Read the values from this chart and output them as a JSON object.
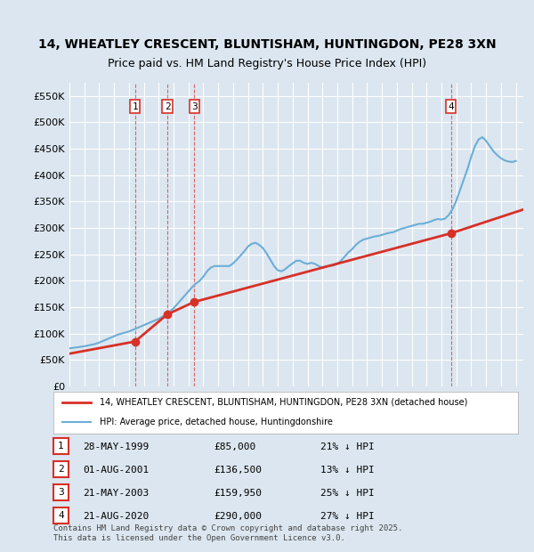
{
  "title": "14, WHEATLEY CRESCENT, BLUNTISHAM, HUNTINGDON, PE28 3XN",
  "subtitle": "Price paid vs. HM Land Registry's House Price Index (HPI)",
  "xlabel": "",
  "ylabel": "",
  "ylim": [
    0,
    575000
  ],
  "yticks": [
    0,
    50000,
    100000,
    150000,
    200000,
    250000,
    300000,
    350000,
    400000,
    450000,
    500000,
    550000
  ],
  "ytick_labels": [
    "£0",
    "£50K",
    "£100K",
    "£150K",
    "£200K",
    "£250K",
    "£300K",
    "£350K",
    "£400K",
    "£450K",
    "£500K",
    "£550K"
  ],
  "xlim_start": 1995.0,
  "xlim_end": 2025.5,
  "background_color": "#dce6f0",
  "plot_bg_color": "#dce6f0",
  "grid_color": "#ffffff",
  "hpi_line_color": "#6baed6",
  "price_line_color": "#d73027",
  "transaction_marker_color": "#d73027",
  "legend_label_price": "14, WHEATLEY CRESCENT, BLUNTISHAM, HUNTINGDON, PE28 3XN (detached house)",
  "legend_label_hpi": "HPI: Average price, detached house, Huntingdonshire",
  "transactions": [
    {
      "num": 1,
      "date": "28-MAY-1999",
      "year": 1999.41,
      "price": 85000,
      "pct": "21%",
      "dir": "↓"
    },
    {
      "num": 2,
      "date": "01-AUG-2001",
      "year": 2001.58,
      "price": 136500,
      "pct": "13%",
      "dir": "↓"
    },
    {
      "num": 3,
      "date": "21-MAY-2003",
      "year": 2003.38,
      "price": 159950,
      "pct": "25%",
      "dir": "↓"
    },
    {
      "num": 4,
      "date": "21-AUG-2020",
      "year": 2020.64,
      "price": 290000,
      "pct": "27%",
      "dir": "↓"
    }
  ],
  "footnote": "Contains HM Land Registry data © Crown copyright and database right 2025.\nThis data is licensed under the Open Government Licence v3.0.",
  "hpi_data_x": [
    1995.0,
    1995.25,
    1995.5,
    1995.75,
    1996.0,
    1996.25,
    1996.5,
    1996.75,
    1997.0,
    1997.25,
    1997.5,
    1997.75,
    1998.0,
    1998.25,
    1998.5,
    1998.75,
    1999.0,
    1999.25,
    1999.5,
    1999.75,
    2000.0,
    2000.25,
    2000.5,
    2000.75,
    2001.0,
    2001.25,
    2001.5,
    2001.75,
    2002.0,
    2002.25,
    2002.5,
    2002.75,
    2003.0,
    2003.25,
    2003.5,
    2003.75,
    2004.0,
    2004.25,
    2004.5,
    2004.75,
    2005.0,
    2005.25,
    2005.5,
    2005.75,
    2006.0,
    2006.25,
    2006.5,
    2006.75,
    2007.0,
    2007.25,
    2007.5,
    2007.75,
    2008.0,
    2008.25,
    2008.5,
    2008.75,
    2009.0,
    2009.25,
    2009.5,
    2009.75,
    2010.0,
    2010.25,
    2010.5,
    2010.75,
    2011.0,
    2011.25,
    2011.5,
    2011.75,
    2012.0,
    2012.25,
    2012.5,
    2012.75,
    2013.0,
    2013.25,
    2013.5,
    2013.75,
    2014.0,
    2014.25,
    2014.5,
    2014.75,
    2015.0,
    2015.25,
    2015.5,
    2015.75,
    2016.0,
    2016.25,
    2016.5,
    2016.75,
    2017.0,
    2017.25,
    2017.5,
    2017.75,
    2018.0,
    2018.25,
    2018.5,
    2018.75,
    2019.0,
    2019.25,
    2019.5,
    2019.75,
    2020.0,
    2020.25,
    2020.5,
    2020.75,
    2021.0,
    2021.25,
    2021.5,
    2021.75,
    2022.0,
    2022.25,
    2022.5,
    2022.75,
    2023.0,
    2023.25,
    2023.5,
    2023.75,
    2024.0,
    2024.25,
    2024.5,
    2024.75,
    2025.0
  ],
  "hpi_data_y": [
    72000,
    73000,
    74000,
    75000,
    76000,
    77500,
    79000,
    80500,
    83000,
    86000,
    89000,
    92000,
    95000,
    98000,
    100000,
    102000,
    104000,
    107000,
    110000,
    113000,
    116000,
    119000,
    122000,
    125000,
    128000,
    132000,
    137000,
    142000,
    148000,
    156000,
    164000,
    172000,
    180000,
    188000,
    195000,
    200000,
    208000,
    218000,
    225000,
    228000,
    228000,
    228000,
    228000,
    228000,
    233000,
    240000,
    248000,
    256000,
    265000,
    270000,
    272000,
    268000,
    262000,
    252000,
    240000,
    228000,
    220000,
    218000,
    222000,
    228000,
    233000,
    238000,
    238000,
    234000,
    232000,
    234000,
    232000,
    228000,
    225000,
    228000,
    228000,
    229000,
    232000,
    238000,
    246000,
    254000,
    260000,
    268000,
    274000,
    278000,
    280000,
    282000,
    284000,
    285000,
    287000,
    289000,
    291000,
    292000,
    295000,
    298000,
    300000,
    302000,
    304000,
    306000,
    308000,
    308000,
    310000,
    312000,
    315000,
    317000,
    316000,
    318000,
    325000,
    336000,
    352000,
    372000,
    392000,
    412000,
    435000,
    455000,
    468000,
    472000,
    465000,
    455000,
    445000,
    438000,
    432000,
    428000,
    426000,
    425000,
    427000
  ],
  "price_data_x": [
    1995.0,
    1999.41,
    2001.58,
    2003.38,
    2020.64,
    2025.5
  ],
  "price_data_y": [
    62000,
    85000,
    136500,
    159950,
    290000,
    335000
  ]
}
